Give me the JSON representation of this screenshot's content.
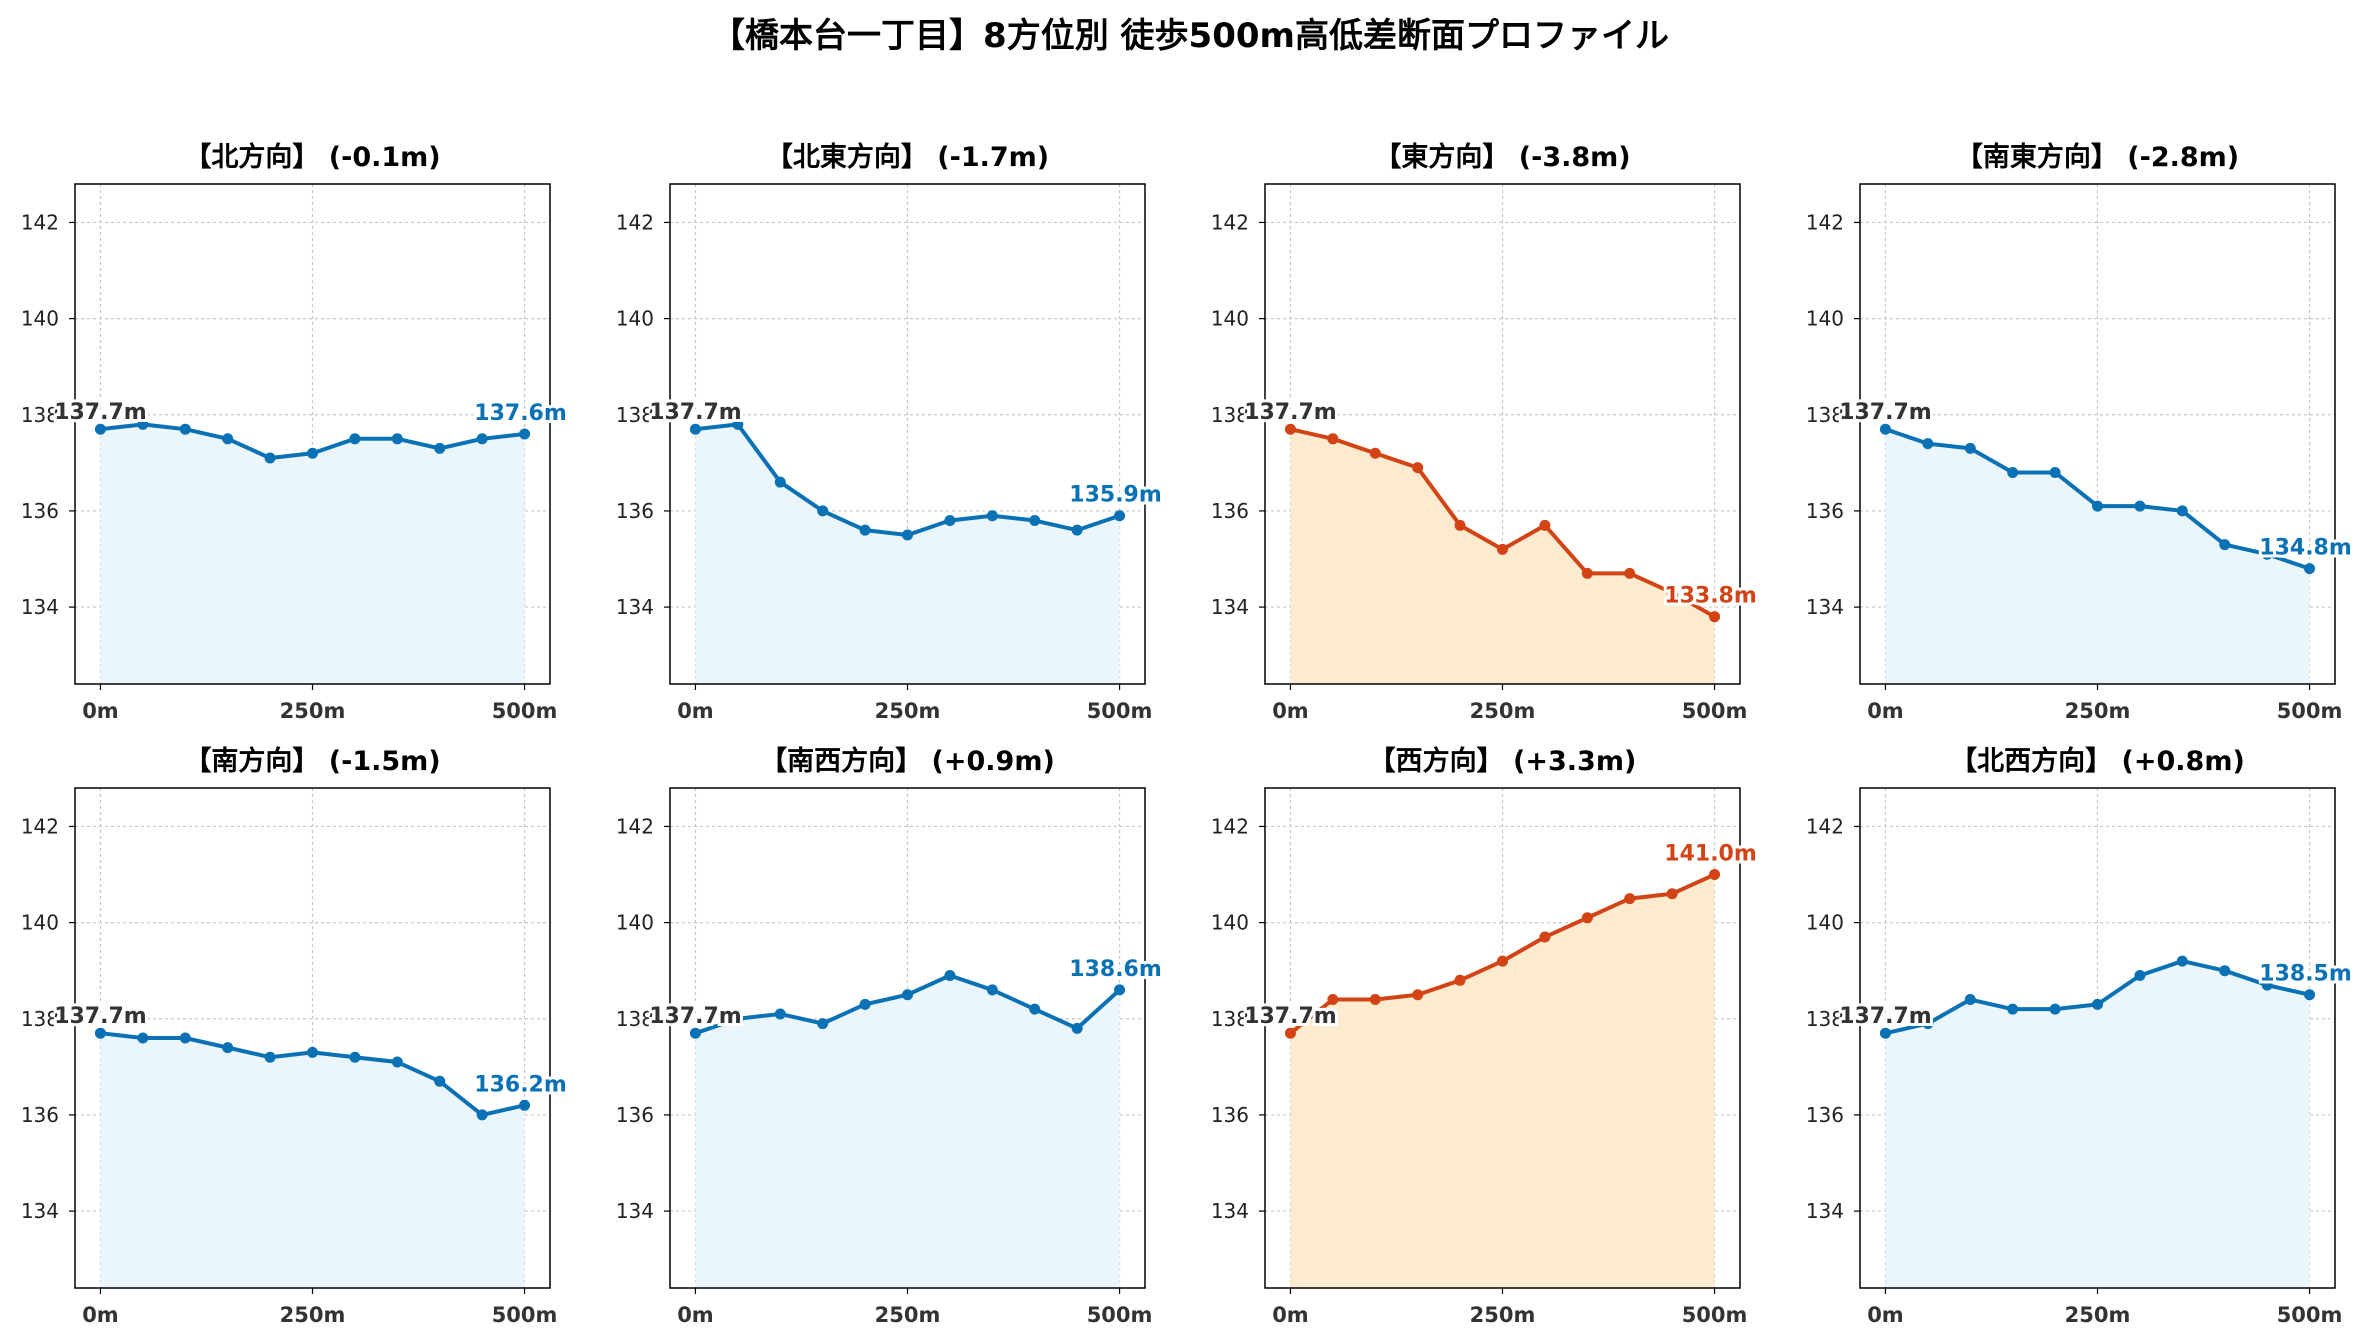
{
  "title": "【橋本台一丁目】8方位別 徒歩500m高低差断面プロファイル",
  "colors": {
    "descent_line": "#0a72b4",
    "descent_fill": "#eaf6fb",
    "ascent_line": "#d24416",
    "ascent_fill": "#fdebd0",
    "grid": "#c8c8c8",
    "start_label": "#333333"
  },
  "chart_data": [
    {
      "type": "area",
      "title": "【北方向】 (-0.1m)",
      "highlight": false,
      "x": [
        0,
        50,
        100,
        150,
        200,
        250,
        300,
        350,
        400,
        450,
        500
      ],
      "y": [
        137.7,
        137.8,
        137.7,
        137.5,
        137.1,
        137.2,
        137.5,
        137.5,
        137.3,
        137.5,
        137.6
      ],
      "start_label": "137.7m",
      "end_label": "137.6m",
      "ylim": [
        132.4,
        142.8
      ],
      "yticks": [
        134,
        136,
        138,
        140,
        142
      ],
      "ytick_labels": [
        "134",
        "136",
        "138",
        "140",
        "142"
      ],
      "xlim": [
        -30,
        530
      ],
      "xticks": [
        0,
        250,
        500
      ],
      "xtick_labels": [
        "0m",
        "250m",
        "500m"
      ],
      "grid": true
    },
    {
      "type": "area",
      "title": "【北東方向】 (-1.7m)",
      "highlight": false,
      "x": [
        0,
        50,
        100,
        150,
        200,
        250,
        300,
        350,
        400,
        450,
        500
      ],
      "y": [
        137.7,
        137.8,
        136.6,
        136.0,
        135.6,
        135.5,
        135.8,
        135.9,
        135.8,
        135.6,
        135.9
      ],
      "start_label": "137.7m",
      "end_label": "135.9m",
      "ylim": [
        132.4,
        142.8
      ],
      "yticks": [
        134,
        136,
        138,
        140,
        142
      ],
      "ytick_labels": [
        "134",
        "136",
        "138",
        "140",
        "142"
      ],
      "xlim": [
        -30,
        530
      ],
      "xticks": [
        0,
        250,
        500
      ],
      "xtick_labels": [
        "0m",
        "250m",
        "500m"
      ],
      "grid": true
    },
    {
      "type": "area",
      "title": "【東方向】 (-3.8m)",
      "highlight": true,
      "x": [
        0,
        50,
        100,
        150,
        200,
        250,
        300,
        350,
        400,
        450,
        500
      ],
      "y": [
        137.7,
        137.5,
        137.2,
        136.9,
        135.7,
        135.2,
        135.7,
        134.7,
        134.7,
        134.3,
        133.8
      ],
      "start_label": "137.7m",
      "end_label": "133.8m",
      "ylim": [
        132.4,
        142.8
      ],
      "yticks": [
        134,
        136,
        138,
        140,
        142
      ],
      "ytick_labels": [
        "134",
        "136",
        "138",
        "140",
        "142"
      ],
      "xlim": [
        -30,
        530
      ],
      "xticks": [
        0,
        250,
        500
      ],
      "xtick_labels": [
        "0m",
        "250m",
        "500m"
      ],
      "grid": true
    },
    {
      "type": "area",
      "title": "【南東方向】 (-2.8m)",
      "highlight": false,
      "x": [
        0,
        50,
        100,
        150,
        200,
        250,
        300,
        350,
        400,
        450,
        500
      ],
      "y": [
        137.7,
        137.4,
        137.3,
        136.8,
        136.8,
        136.1,
        136.1,
        136.0,
        135.3,
        135.1,
        134.8
      ],
      "start_label": "137.7m",
      "end_label": "134.8m",
      "ylim": [
        132.4,
        142.8
      ],
      "yticks": [
        134,
        136,
        138,
        140,
        142
      ],
      "ytick_labels": [
        "134",
        "136",
        "138",
        "140",
        "142"
      ],
      "xlim": [
        -30,
        530
      ],
      "xticks": [
        0,
        250,
        500
      ],
      "xtick_labels": [
        "0m",
        "250m",
        "500m"
      ],
      "grid": true
    },
    {
      "type": "area",
      "title": "【南方向】 (-1.5m)",
      "highlight": false,
      "x": [
        0,
        50,
        100,
        150,
        200,
        250,
        300,
        350,
        400,
        450,
        500
      ],
      "y": [
        137.7,
        137.6,
        137.6,
        137.4,
        137.2,
        137.3,
        137.2,
        137.1,
        136.7,
        136.0,
        136.2
      ],
      "start_label": "137.7m",
      "end_label": "136.2m",
      "ylim": [
        132.4,
        142.8
      ],
      "yticks": [
        134,
        136,
        138,
        140,
        142
      ],
      "ytick_labels": [
        "134",
        "136",
        "138",
        "140",
        "142"
      ],
      "xlim": [
        -30,
        530
      ],
      "xticks": [
        0,
        250,
        500
      ],
      "xtick_labels": [
        "0m",
        "250m",
        "500m"
      ],
      "grid": true
    },
    {
      "type": "area",
      "title": "【南西方向】 (+0.9m)",
      "highlight": false,
      "x": [
        0,
        50,
        100,
        150,
        200,
        250,
        300,
        350,
        400,
        450,
        500
      ],
      "y": [
        137.7,
        138.0,
        138.1,
        137.9,
        138.3,
        138.5,
        138.9,
        138.6,
        138.2,
        137.8,
        138.6
      ],
      "start_label": "137.7m",
      "end_label": "138.6m",
      "ylim": [
        132.4,
        142.8
      ],
      "yticks": [
        134,
        136,
        138,
        140,
        142
      ],
      "ytick_labels": [
        "134",
        "136",
        "138",
        "140",
        "142"
      ],
      "xlim": [
        -30,
        530
      ],
      "xticks": [
        0,
        250,
        500
      ],
      "xtick_labels": [
        "0m",
        "250m",
        "500m"
      ],
      "grid": true
    },
    {
      "type": "area",
      "title": "【西方向】 (+3.3m)",
      "highlight": true,
      "x": [
        0,
        50,
        100,
        150,
        200,
        250,
        300,
        350,
        400,
        450,
        500
      ],
      "y": [
        137.7,
        138.4,
        138.4,
        138.5,
        138.8,
        139.2,
        139.7,
        140.1,
        140.5,
        140.6,
        141.0
      ],
      "start_label": "137.7m",
      "end_label": "141.0m",
      "ylim": [
        132.4,
        142.8
      ],
      "yticks": [
        134,
        136,
        138,
        140,
        142
      ],
      "ytick_labels": [
        "134",
        "136",
        "138",
        "140",
        "142"
      ],
      "xlim": [
        -30,
        530
      ],
      "xticks": [
        0,
        250,
        500
      ],
      "xtick_labels": [
        "0m",
        "250m",
        "500m"
      ],
      "grid": true
    },
    {
      "type": "area",
      "title": "【北西方向】 (+0.8m)",
      "highlight": false,
      "x": [
        0,
        50,
        100,
        150,
        200,
        250,
        300,
        350,
        400,
        450,
        500
      ],
      "y": [
        137.7,
        137.9,
        138.4,
        138.2,
        138.2,
        138.3,
        138.9,
        139.2,
        139.0,
        138.7,
        138.5
      ],
      "start_label": "137.7m",
      "end_label": "138.5m",
      "ylim": [
        132.4,
        142.8
      ],
      "yticks": [
        134,
        136,
        138,
        140,
        142
      ],
      "ytick_labels": [
        "134",
        "136",
        "138",
        "140",
        "142"
      ],
      "xlim": [
        -30,
        530
      ],
      "xticks": [
        0,
        250,
        500
      ],
      "xtick_labels": [
        "0m",
        "250m",
        "500m"
      ],
      "grid": true
    }
  ]
}
